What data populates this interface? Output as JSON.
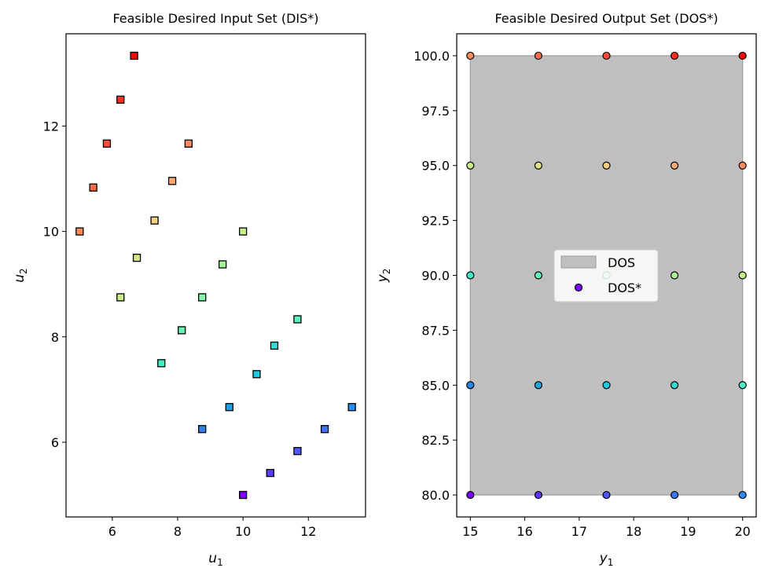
{
  "chart_data": [
    {
      "type": "scatter",
      "title": "Feasible Desired Input Set (DIS*)",
      "xlabel": {
        "base": "u",
        "sub": "1"
      },
      "ylabel": {
        "base": "u",
        "sub": "2"
      },
      "xlim": [
        4.583,
        13.75
      ],
      "ylim": [
        4.583,
        13.75
      ],
      "xticks": [
        6,
        8,
        10,
        12
      ],
      "yticks": [
        6,
        8,
        10,
        12
      ],
      "grid": false,
      "marker": "square",
      "points": [
        {
          "x": 10.0,
          "y": 5.0,
          "color": "#8000ff"
        },
        {
          "x": 10.833,
          "y": 5.417,
          "color": "#5a3ffd"
        },
        {
          "x": 11.667,
          "y": 5.833,
          "color": "#4e5afb"
        },
        {
          "x": 12.5,
          "y": 6.25,
          "color": "#3e76f5"
        },
        {
          "x": 13.333,
          "y": 6.667,
          "color": "#2890ee"
        },
        {
          "x": 8.75,
          "y": 6.25,
          "color": "#2a86e9"
        },
        {
          "x": 9.583,
          "y": 6.667,
          "color": "#1ea0e4"
        },
        {
          "x": 10.417,
          "y": 7.292,
          "color": "#22c9e0"
        },
        {
          "x": 10.958,
          "y": 7.833,
          "color": "#33dbd4"
        },
        {
          "x": 11.667,
          "y": 8.333,
          "color": "#5cf2c0"
        },
        {
          "x": 7.5,
          "y": 7.5,
          "color": "#3ef0c8"
        },
        {
          "x": 8.125,
          "y": 8.125,
          "color": "#62f5b5"
        },
        {
          "x": 8.75,
          "y": 8.75,
          "color": "#80ffaa"
        },
        {
          "x": 9.375,
          "y": 9.375,
          "color": "#a8f596"
        },
        {
          "x": 10.0,
          "y": 10.0,
          "color": "#c3f08a"
        },
        {
          "x": 6.25,
          "y": 8.75,
          "color": "#c8ee88"
        },
        {
          "x": 6.75,
          "y": 9.5,
          "color": "#d4e783"
        },
        {
          "x": 7.292,
          "y": 10.208,
          "color": "#f7cf83"
        },
        {
          "x": 7.833,
          "y": 10.958,
          "color": "#fcaa72"
        },
        {
          "x": 8.333,
          "y": 11.667,
          "color": "#ff8a5e"
        },
        {
          "x": 5.0,
          "y": 10.0,
          "color": "#ff8c5a"
        },
        {
          "x": 5.417,
          "y": 10.833,
          "color": "#ff6b4a"
        },
        {
          "x": 5.833,
          "y": 11.667,
          "color": "#ff4e3a"
        },
        {
          "x": 6.25,
          "y": 12.5,
          "color": "#ff2e22"
        },
        {
          "x": 6.667,
          "y": 13.333,
          "color": "#ff0000"
        }
      ]
    },
    {
      "type": "scatter",
      "title": "Feasible Desired Output Set (DOS*)",
      "xlabel": {
        "base": "y",
        "sub": "1"
      },
      "ylabel": {
        "base": "y",
        "sub": "2"
      },
      "xlim": [
        14.75,
        20.25
      ],
      "ylim": [
        79.0,
        101.0
      ],
      "xticks": [
        15,
        16,
        17,
        18,
        19,
        20
      ],
      "yticks": [
        80.0,
        82.5,
        85.0,
        87.5,
        90.0,
        92.5,
        95.0,
        97.5,
        100.0
      ],
      "ytick_labels": [
        "80.0",
        "82.5",
        "85.0",
        "87.5",
        "90.0",
        "92.5",
        "95.0",
        "97.5",
        "100.0"
      ],
      "grid": false,
      "region": {
        "label": "DOS",
        "x": [
          15,
          20
        ],
        "y": [
          80,
          100
        ],
        "color": "#bfbfbf"
      },
      "legend": {
        "placement": "center",
        "entries": [
          "DOS",
          "DOS*"
        ],
        "marker_color": "#8000ff"
      },
      "marker": "circle",
      "points": [
        {
          "x": 15.0,
          "y": 80.0,
          "color": "#8000ff"
        },
        {
          "x": 16.25,
          "y": 80.0,
          "color": "#6030fe"
        },
        {
          "x": 17.5,
          "y": 80.0,
          "color": "#4f56fb"
        },
        {
          "x": 18.75,
          "y": 80.0,
          "color": "#3a78f5"
        },
        {
          "x": 20.0,
          "y": 80.0,
          "color": "#2a8ef0"
        },
        {
          "x": 15.0,
          "y": 85.0,
          "color": "#2a86e9"
        },
        {
          "x": 16.25,
          "y": 85.0,
          "color": "#1ea8e2"
        },
        {
          "x": 17.5,
          "y": 85.0,
          "color": "#22c9e0"
        },
        {
          "x": 18.75,
          "y": 85.0,
          "color": "#33dbd4"
        },
        {
          "x": 20.0,
          "y": 85.0,
          "color": "#4ff0c5"
        },
        {
          "x": 15.0,
          "y": 90.0,
          "color": "#3ef0c8"
        },
        {
          "x": 16.25,
          "y": 90.0,
          "color": "#62f5b5"
        },
        {
          "x": 17.5,
          "y": 90.0,
          "color": "#80ffaa"
        },
        {
          "x": 18.75,
          "y": 90.0,
          "color": "#a8f596"
        },
        {
          "x": 20.0,
          "y": 90.0,
          "color": "#c3f08a"
        },
        {
          "x": 15.0,
          "y": 95.0,
          "color": "#c8ee88"
        },
        {
          "x": 16.25,
          "y": 95.0,
          "color": "#e2e083"
        },
        {
          "x": 17.5,
          "y": 95.0,
          "color": "#f7cf83"
        },
        {
          "x": 18.75,
          "y": 95.0,
          "color": "#fcaa72"
        },
        {
          "x": 20.0,
          "y": 95.0,
          "color": "#ff8a5e"
        },
        {
          "x": 15.0,
          "y": 100.0,
          "color": "#ff8c5a"
        },
        {
          "x": 16.25,
          "y": 100.0,
          "color": "#ff6b4a"
        },
        {
          "x": 17.5,
          "y": 100.0,
          "color": "#ff4e3a"
        },
        {
          "x": 18.75,
          "y": 100.0,
          "color": "#ff2e22"
        },
        {
          "x": 20.0,
          "y": 100.0,
          "color": "#ff0000"
        }
      ]
    }
  ]
}
